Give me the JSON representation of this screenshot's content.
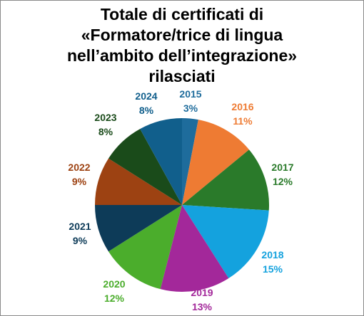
{
  "chart_data": {
    "type": "pie",
    "title_lines": [
      "Totale di certificati di",
      "«Formatore/trice di lingua",
      "nell’ambito dell’integrazione»",
      "rilasciati"
    ],
    "categories": [
      "2015",
      "2016",
      "2017",
      "2018",
      "2019",
      "2020",
      "2021",
      "2022",
      "2023",
      "2024"
    ],
    "values": [
      3,
      11,
      12,
      15,
      13,
      12,
      9,
      9,
      8,
      8
    ],
    "value_labels": [
      "3%",
      "11%",
      "12%",
      "15%",
      "13%",
      "12%",
      "9%",
      "9%",
      "8%",
      "8%"
    ],
    "colors": [
      "#1E6C9C",
      "#EE7B33",
      "#2A7A2A",
      "#14A2DE",
      "#A3289A",
      "#4BAD2C",
      "#0D3B58",
      "#9D4212",
      "#1A4B1A",
      "#115F8C"
    ],
    "label_colors": [
      "#1E6C9C",
      "#EE7B33",
      "#2A7A2A",
      "#14A2DE",
      "#A3289A",
      "#4BAD2C",
      "#0D3B58",
      "#9D4212",
      "#1A4B1A",
      "#115F8C"
    ],
    "legend": "none"
  }
}
